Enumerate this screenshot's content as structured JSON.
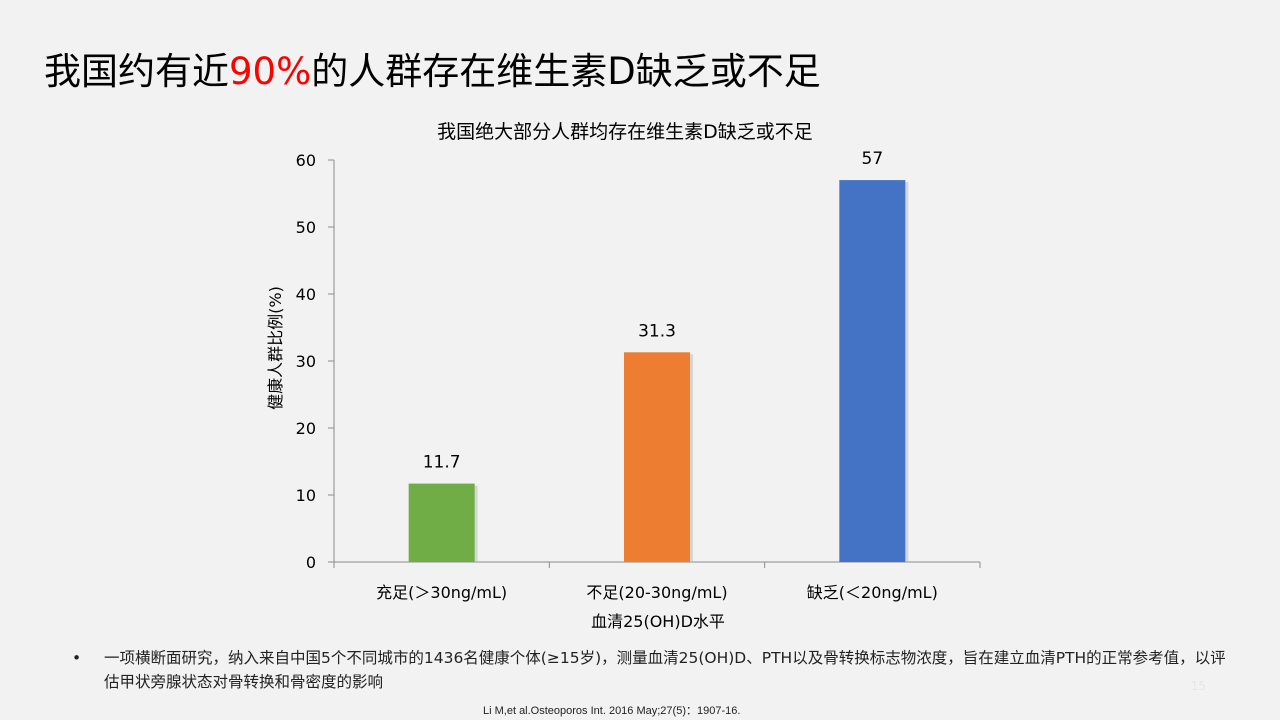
{
  "slide": {
    "title_before": "我国约有近",
    "title_highlight": "90%",
    "title_after": "的人群存在维生素D缺乏或不足",
    "bullet_marker": "•",
    "bullet": "一项横断面研究，纳入来自中国5个不同城市的1436名健康个体(≥15岁)，测量血清25(OH)D、PTH以及骨转换标志物浓度，旨在建立血清PTH的正常参考值，以评估甲状旁腺状态对骨转换和骨密度的影响",
    "citation": "Li M,et al.Osteoporos  Int. 2016 May;27(5)：1907-16.",
    "page_number": "15"
  },
  "chart_data": {
    "type": "bar",
    "title": "我国绝大部分人群均存在维生素D缺乏或不足",
    "xlabel": "血清25(OH)D水平",
    "ylabel": "健康人群比例(%)",
    "categories": [
      "充足(＞30ng/mL)",
      "不足(20-30ng/mL)",
      "缺乏(＜20ng/mL)"
    ],
    "values": [
      11.7,
      31.3,
      57
    ],
    "data_labels": [
      "11.7",
      "31.3",
      "57"
    ],
    "colors": [
      "#70ad47",
      "#ed7d31",
      "#4472c4"
    ],
    "ylim": [
      0,
      60
    ],
    "yticks": [
      0,
      10,
      20,
      30,
      40,
      50,
      60
    ],
    "grid": false,
    "legend": "none"
  }
}
